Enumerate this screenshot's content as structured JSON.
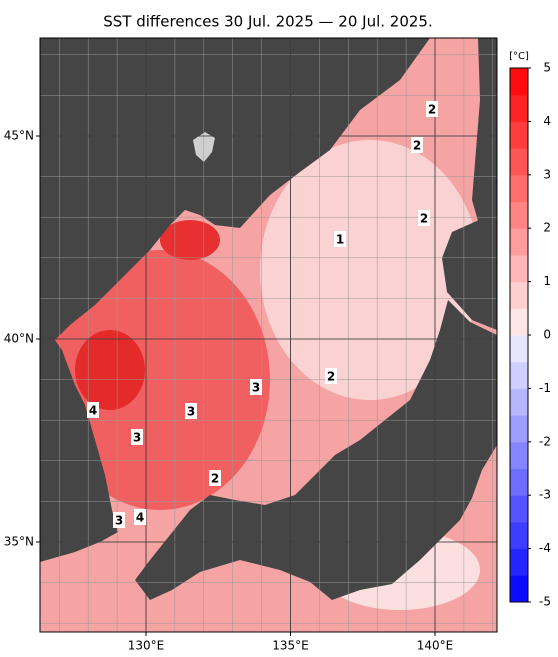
{
  "title": "SST differences 30 Jul. 2025 — 20 Jul. 2025.",
  "lat_ticks": [
    {
      "value": 45,
      "label": "45°N"
    },
    {
      "value": 40,
      "label": "40°N"
    },
    {
      "value": 35,
      "label": "35°N"
    }
  ],
  "lon_ticks": [
    {
      "value": 130,
      "label": "130°E"
    },
    {
      "value": 135,
      "label": "135°E"
    },
    {
      "value": 140,
      "label": "140°E"
    }
  ],
  "colorbar": {
    "unit": "[°C]",
    "lim": [
      -5,
      5
    ],
    "ticks": [
      5,
      4,
      3,
      2,
      1,
      0,
      -1,
      -2,
      -3,
      -4,
      -5
    ],
    "colors": {
      "max": "#ff0000",
      "mid": "#ffffff",
      "min": "#0000ff"
    }
  },
  "contour_labels": [
    2,
    2,
    2,
    1,
    3,
    2,
    4,
    3,
    3,
    2,
    4,
    3
  ]
}
